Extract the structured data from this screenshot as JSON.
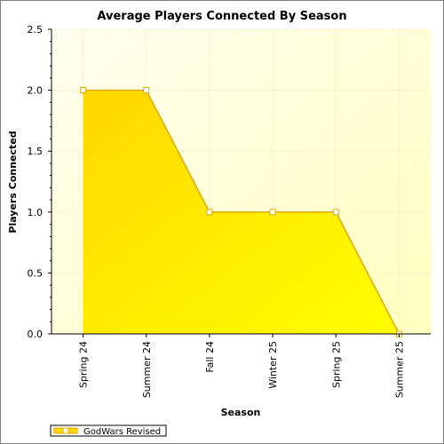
{
  "chart_data": {
    "type": "area",
    "title": "Average Players Connected By Season",
    "xlabel": "Season",
    "ylabel": "Players Connected",
    "categories": [
      "Spring 24",
      "Summer 24",
      "Fall 24",
      "Winter 25",
      "Spring 25",
      "Summer 25"
    ],
    "series": [
      {
        "name": "GodWars Revised",
        "values": [
          2.0,
          2.0,
          1.0,
          1.0,
          1.0,
          0.0
        ]
      }
    ],
    "ylim": [
      0,
      2.5
    ],
    "yticks": [
      "0.0",
      "0.5",
      "1.0",
      "1.5",
      "2.0",
      "2.5"
    ],
    "grid": true,
    "legend_position": "bottom-left",
    "colors": {
      "plot_bg_light": "#fffff0",
      "plot_bg_dark": "#ffffc0",
      "area_light": "#ffd700",
      "area_dark": "#ffff00",
      "line": "#e0a800",
      "grid": "#d8d8b0",
      "marker_fill": "#ffffff"
    }
  }
}
